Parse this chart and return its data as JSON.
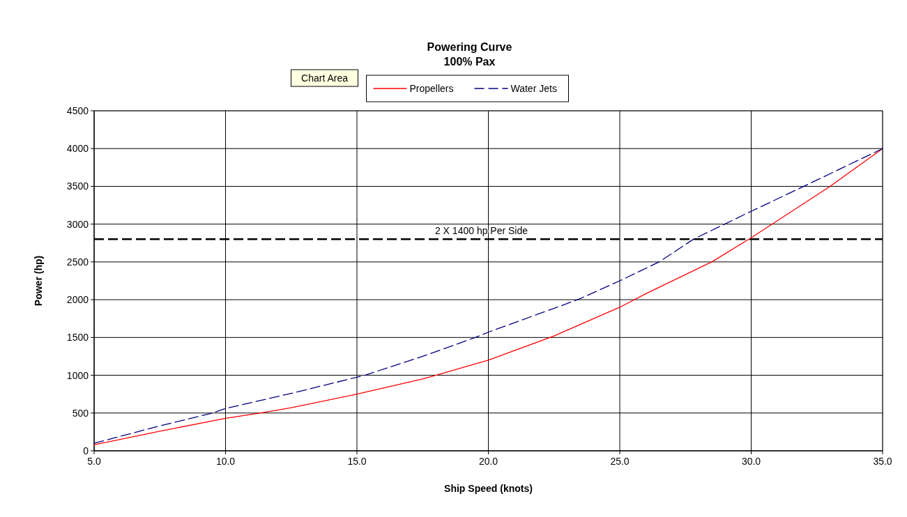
{
  "chart_data": {
    "type": "line",
    "title": "Powering Curve",
    "subtitle": "100% Pax",
    "xlabel": "Ship Speed (knots)",
    "ylabel": "Power (hp)",
    "xlim": [
      5,
      35
    ],
    "xticks": [
      {
        "value": 5,
        "label": "5.0"
      },
      {
        "value": 10,
        "label": "10.0"
      },
      {
        "value": 15,
        "label": "15.0"
      },
      {
        "value": 20,
        "label": "20.0"
      },
      {
        "value": 25,
        "label": "25.0"
      },
      {
        "value": 30,
        "label": "30.0"
      },
      {
        "value": 35,
        "label": "35.0"
      }
    ],
    "ylim": [
      0,
      4500
    ],
    "yticks": [
      0,
      500,
      1000,
      1500,
      2000,
      2500,
      3000,
      3500,
      4000,
      4500
    ],
    "grid": true,
    "legend": "top",
    "annotations": [
      "Chart Area"
    ],
    "ref_lines": [
      {
        "axis": "y",
        "value": 2800,
        "label": "2 X 1400 hp Per Side",
        "color": "#000000",
        "line_style": "dashed"
      }
    ],
    "series": [
      {
        "name": "Propellers",
        "color": "#ff0000",
        "line_style": "solid",
        "x": [
          5,
          7.5,
          10,
          11.3,
          12.5,
          15,
          17.5,
          18,
          20,
          22.5,
          25,
          26,
          28.5,
          30,
          33,
          35
        ],
        "values": [
          80,
          260,
          430,
          500,
          570,
          750,
          950,
          1000,
          1200,
          1520,
          1900,
          2080,
          2500,
          2820,
          3500,
          4000
        ]
      },
      {
        "name": "Water Jets",
        "color": "#000080",
        "line_style": "dashed",
        "x": [
          5,
          7.5,
          9.5,
          10,
          12.5,
          15.3,
          17.5,
          19.5,
          20,
          23.4,
          25,
          26.5,
          27.8,
          30,
          32,
          35
        ],
        "values": [
          100,
          330,
          500,
          560,
          760,
          1000,
          1250,
          1500,
          1570,
          2000,
          2250,
          2500,
          2800,
          3170,
          3500,
          4000
        ]
      }
    ]
  }
}
